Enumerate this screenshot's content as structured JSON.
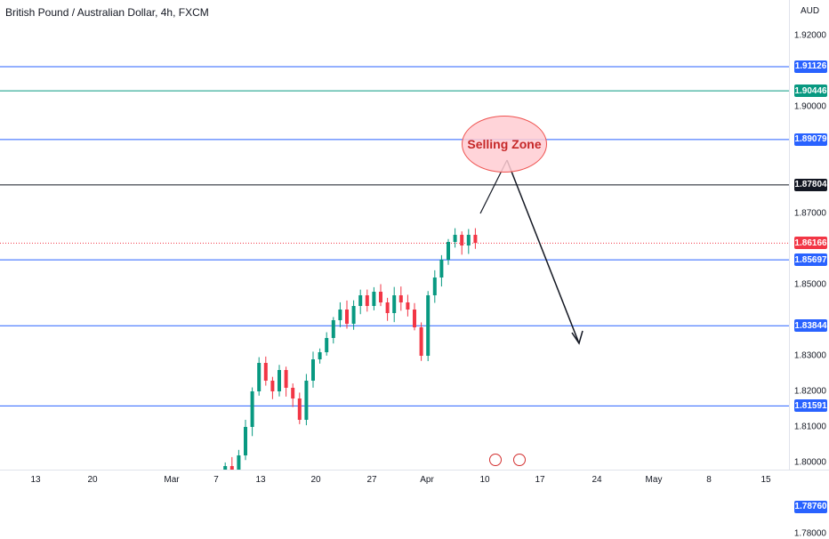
{
  "title": "British Pound / Australian Dollar, 4h, FXCM",
  "currency": "AUD",
  "price_ticks": [
    "1.92000",
    "1.90000",
    "1.87000",
    "1.85000",
    "1.83000",
    "1.82000",
    "1.81000",
    "1.80000",
    "1.78000"
  ],
  "levels": [
    {
      "label": "1.91126",
      "value": 1.91126,
      "color": "#2962ff"
    },
    {
      "label": "1.90446",
      "value": 1.90446,
      "color": "#089981"
    },
    {
      "label": "1.89079",
      "value": 1.89079,
      "color": "#2962ff"
    },
    {
      "label": "1.87804",
      "value": 1.87804,
      "color": "#131722"
    },
    {
      "label": "1.86166",
      "value": 1.86166,
      "color": "#f23645"
    },
    {
      "label": "1.85697",
      "value": 1.85697,
      "color": "#2962ff"
    },
    {
      "label": "1.83844",
      "value": 1.83844,
      "color": "#2962ff"
    },
    {
      "label": "1.81591",
      "value": 1.81591,
      "color": "#2962ff"
    },
    {
      "label": "1.78760",
      "value": 1.7876,
      "color": "#2962ff"
    }
  ],
  "time_labels": [
    "13",
    "20",
    "Mar",
    "7",
    "13",
    "20",
    "27",
    "Apr",
    "10",
    "17",
    "24",
    "May",
    "8",
    "15"
  ],
  "annotation": "Selling Zone",
  "colors": {
    "up": "#089981",
    "down": "#f23645",
    "bg": "#ffffff"
  },
  "chart_data": {
    "type": "candlestick",
    "y_range": [
      1.7758,
      1.9266
    ],
    "x_labels": [
      "13",
      "20",
      "Mar",
      "7",
      "13",
      "20",
      "27",
      "Apr",
      "10",
      "17",
      "24",
      "May",
      "8",
      "15"
    ],
    "closes_approx": [
      1.7788,
      1.781,
      1.784,
      1.796,
      1.79,
      1.783,
      1.779,
      1.778,
      1.78,
      1.783,
      1.788,
      1.793,
      1.799,
      1.796,
      1.802,
      1.81,
      1.82,
      1.828,
      1.823,
      1.82,
      1.826,
      1.821,
      1.818,
      1.812,
      1.823,
      1.829,
      1.831,
      1.835,
      1.84,
      1.843,
      1.839,
      1.844,
      1.847,
      1.844,
      1.848,
      1.845,
      1.842,
      1.847,
      1.845,
      1.843,
      1.838,
      1.83,
      1.847,
      1.852,
      1.857,
      1.862,
      1.864,
      1.861,
      1.864,
      1.8617
    ]
  }
}
